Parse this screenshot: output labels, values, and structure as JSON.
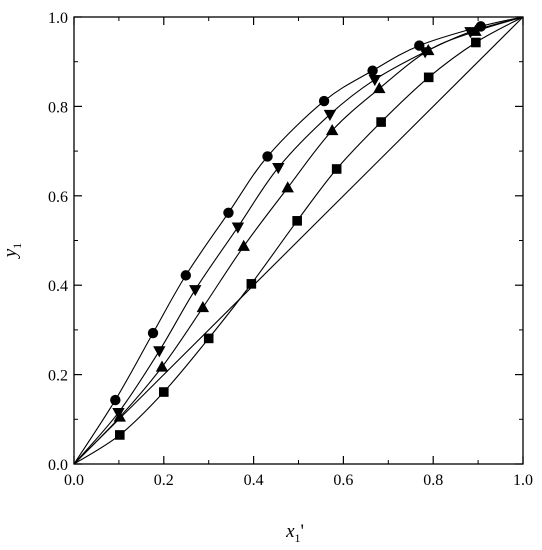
{
  "chart_data": {
    "type": "scatter",
    "title": "",
    "xlabel": "x",
    "xlabel_sub": "1",
    "xlabel_suffix": "'",
    "ylabel": "y",
    "ylabel_sub": "1",
    "xlim": [
      0.0,
      1.0
    ],
    "ylim": [
      0.0,
      1.0
    ],
    "xticks": [
      "0.0",
      "0.2",
      "0.4",
      "0.6",
      "0.8",
      "1.0"
    ],
    "yticks": [
      "0.0",
      "0.2",
      "0.4",
      "0.6",
      "0.8",
      "1.0"
    ],
    "grid": false,
    "legend": "none",
    "diagonal": [
      [
        0,
        0
      ],
      [
        1,
        1
      ]
    ],
    "series": [
      {
        "marker": "circle",
        "points": [
          [
            0.092,
            0.143
          ],
          [
            0.176,
            0.293
          ],
          [
            0.249,
            0.422
          ],
          [
            0.344,
            0.562
          ],
          [
            0.431,
            0.688
          ],
          [
            0.557,
            0.812
          ],
          [
            0.665,
            0.88
          ],
          [
            0.769,
            0.936
          ],
          [
            0.906,
            0.979
          ]
        ],
        "curve": [
          [
            0.0,
            0.0
          ],
          [
            0.092,
            0.143
          ],
          [
            0.176,
            0.293
          ],
          [
            0.249,
            0.422
          ],
          [
            0.344,
            0.562
          ],
          [
            0.431,
            0.688
          ],
          [
            0.557,
            0.812
          ],
          [
            0.665,
            0.88
          ],
          [
            0.769,
            0.936
          ],
          [
            0.906,
            0.979
          ],
          [
            1.0,
            1.0
          ]
        ]
      },
      {
        "marker": "triangle-down",
        "points": [
          [
            0.099,
            0.115
          ],
          [
            0.19,
            0.253
          ],
          [
            0.27,
            0.39
          ],
          [
            0.365,
            0.53
          ],
          [
            0.455,
            0.663
          ],
          [
            0.57,
            0.782
          ],
          [
            0.67,
            0.86
          ],
          [
            0.782,
            0.922
          ],
          [
            0.883,
            0.967
          ]
        ],
        "curve": [
          [
            0.0,
            0.0
          ],
          [
            0.099,
            0.115
          ],
          [
            0.19,
            0.253
          ],
          [
            0.27,
            0.39
          ],
          [
            0.365,
            0.53
          ],
          [
            0.455,
            0.663
          ],
          [
            0.57,
            0.782
          ],
          [
            0.67,
            0.86
          ],
          [
            0.782,
            0.922
          ],
          [
            0.883,
            0.967
          ],
          [
            1.0,
            1.0
          ]
        ]
      },
      {
        "marker": "triangle-up",
        "points": [
          [
            0.102,
            0.105
          ],
          [
            0.196,
            0.217
          ],
          [
            0.287,
            0.35
          ],
          [
            0.378,
            0.487
          ],
          [
            0.476,
            0.618
          ],
          [
            0.575,
            0.746
          ],
          [
            0.68,
            0.84
          ],
          [
            0.789,
            0.925
          ],
          [
            0.894,
            0.968
          ]
        ],
        "curve": [
          [
            0.0,
            0.0
          ],
          [
            0.102,
            0.105
          ],
          [
            0.196,
            0.217
          ],
          [
            0.287,
            0.35
          ],
          [
            0.378,
            0.487
          ],
          [
            0.476,
            0.618
          ],
          [
            0.575,
            0.746
          ],
          [
            0.68,
            0.84
          ],
          [
            0.789,
            0.925
          ],
          [
            0.894,
            0.968
          ],
          [
            1.0,
            1.0
          ]
        ]
      },
      {
        "marker": "square",
        "points": [
          [
            0.102,
            0.065
          ],
          [
            0.2,
            0.161
          ],
          [
            0.3,
            0.281
          ],
          [
            0.395,
            0.403
          ],
          [
            0.497,
            0.544
          ],
          [
            0.585,
            0.66
          ],
          [
            0.684,
            0.765
          ],
          [
            0.79,
            0.865
          ],
          [
            0.895,
            0.943
          ]
        ],
        "curve": [
          [
            0.0,
            0.0
          ],
          [
            0.102,
            0.065
          ],
          [
            0.2,
            0.161
          ],
          [
            0.3,
            0.281
          ],
          [
            0.395,
            0.403
          ],
          [
            0.497,
            0.544
          ],
          [
            0.585,
            0.66
          ],
          [
            0.684,
            0.765
          ],
          [
            0.79,
            0.865
          ],
          [
            0.895,
            0.943
          ],
          [
            1.0,
            1.0
          ]
        ]
      }
    ]
  }
}
